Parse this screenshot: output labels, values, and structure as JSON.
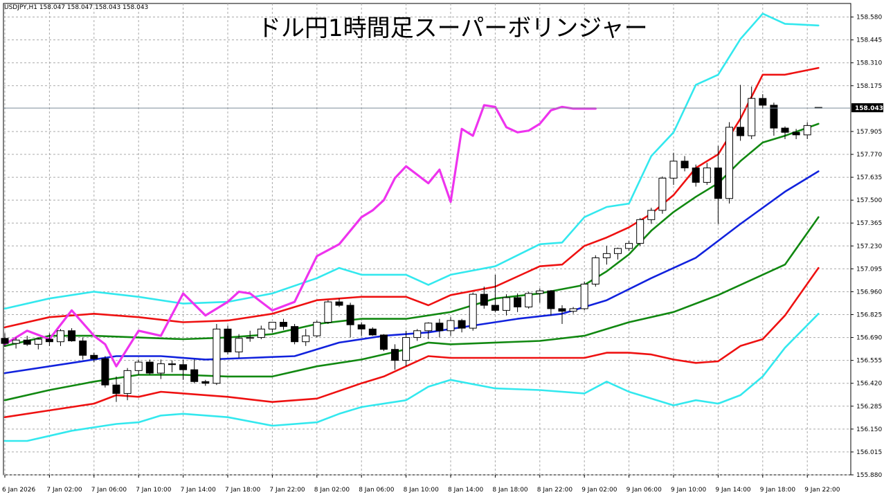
{
  "header": {
    "symbol_info": "USDJPY,H1  158.047 158.047 158.043 158.043",
    "title": "ドル円1時間足スーパーボリンジャー"
  },
  "colors": {
    "background": "#ffffff",
    "grid": "#a8a8a8",
    "sigma3": "#33e8ee",
    "sigma2": "#ee1111",
    "sigma1": "#118811",
    "middle": "#1122dd",
    "lagging": "#ee33ee",
    "candle_outline": "#000000",
    "bull_fill": "#ffffff",
    "bear_fill": "#000000",
    "current_price_line": "#7a8a99",
    "price_tag_bg": "#000000"
  },
  "chart_data": {
    "type": "candlestick",
    "title": "ドル円1時間足スーパーボリンジャー",
    "symbol": "USDJPY,H1",
    "current_price": "158.043",
    "ylim": [
      155.88,
      158.66
    ],
    "y_ticks": [
      "158.580",
      "158.445",
      "158.310",
      "158.175",
      "157.905",
      "157.770",
      "157.635",
      "157.500",
      "157.365",
      "157.230",
      "157.095",
      "156.960",
      "156.825",
      "156.690",
      "156.555",
      "156.420",
      "156.285",
      "156.150",
      "156.015",
      "155.880"
    ],
    "x_ticks": [
      "6 Jan 2026",
      "7 Jan 02:00",
      "7 Jan 06:00",
      "7 Jan 10:00",
      "7 Jan 14:00",
      "7 Jan 18:00",
      "7 Jan 22:00",
      "8 Jan 02:00",
      "8 Jan 06:00",
      "8 Jan 10:00",
      "8 Jan 14:00",
      "8 Jan 18:00",
      "8 Jan 22:00",
      "9 Jan 02:00",
      "9 Jan 06:00",
      "9 Jan 10:00",
      "9 Jan 14:00",
      "9 Jan 18:00",
      "9 Jan 22:00"
    ],
    "x_tick_index": [
      0,
      4,
      8,
      12,
      16,
      20,
      24,
      28,
      32,
      36,
      40,
      44,
      48,
      52,
      56,
      60,
      64,
      68,
      72
    ],
    "bar_count": 74,
    "candles": [
      [
        156.685,
        156.715,
        156.635,
        156.655
      ],
      [
        156.655,
        156.69,
        156.625,
        156.675
      ],
      [
        156.675,
        156.7,
        156.64,
        156.65
      ],
      [
        156.65,
        156.69,
        156.62,
        156.68
      ],
      [
        156.68,
        156.715,
        156.64,
        156.665
      ],
      [
        156.665,
        156.74,
        156.64,
        156.73
      ],
      [
        156.73,
        156.745,
        156.665,
        156.67
      ],
      [
        156.67,
        156.69,
        156.56,
        156.585
      ],
      [
        156.585,
        156.6,
        156.545,
        156.565
      ],
      [
        156.565,
        156.58,
        156.395,
        156.41
      ],
      [
        156.41,
        156.46,
        156.31,
        156.36
      ],
      [
        156.36,
        156.51,
        156.32,
        156.495
      ],
      [
        156.495,
        156.56,
        156.47,
        156.545
      ],
      [
        156.545,
        156.56,
        156.47,
        156.48
      ],
      [
        156.48,
        156.56,
        156.445,
        156.535
      ],
      [
        156.535,
        156.555,
        156.485,
        156.53
      ],
      [
        156.53,
        156.56,
        156.44,
        156.5
      ],
      [
        156.5,
        156.56,
        156.42,
        156.43
      ],
      [
        156.43,
        156.44,
        156.405,
        156.42
      ],
      [
        156.42,
        156.77,
        156.41,
        156.74
      ],
      [
        156.74,
        156.76,
        156.59,
        156.605
      ],
      [
        156.605,
        156.71,
        156.57,
        156.685
      ],
      [
        156.685,
        156.73,
        156.665,
        156.69
      ],
      [
        156.69,
        156.76,
        156.68,
        156.74
      ],
      [
        156.74,
        156.78,
        156.72,
        156.78
      ],
      [
        156.78,
        156.8,
        156.735,
        156.755
      ],
      [
        156.755,
        156.77,
        156.65,
        156.665
      ],
      [
        156.665,
        156.74,
        156.64,
        156.7
      ],
      [
        156.7,
        156.79,
        156.69,
        156.78
      ],
      [
        156.78,
        156.91,
        156.77,
        156.9
      ],
      [
        156.9,
        156.92,
        156.87,
        156.88
      ],
      [
        156.88,
        156.895,
        156.69,
        156.765
      ],
      [
        156.765,
        156.78,
        156.7,
        156.74
      ],
      [
        156.74,
        156.75,
        156.7,
        156.705
      ],
      [
        156.705,
        156.71,
        156.61,
        156.62
      ],
      [
        156.62,
        156.65,
        156.5,
        156.555
      ],
      [
        156.555,
        156.73,
        156.52,
        156.69
      ],
      [
        156.69,
        156.74,
        156.67,
        156.73
      ],
      [
        156.73,
        156.78,
        156.68,
        156.775
      ],
      [
        156.775,
        156.8,
        156.69,
        156.73
      ],
      [
        156.73,
        156.81,
        156.7,
        156.79
      ],
      [
        156.79,
        156.8,
        156.72,
        156.745
      ],
      [
        156.745,
        156.955,
        156.73,
        156.945
      ],
      [
        156.945,
        156.99,
        156.86,
        156.88
      ],
      [
        156.88,
        157.06,
        156.84,
        156.85
      ],
      [
        156.85,
        156.945,
        156.82,
        156.925
      ],
      [
        156.925,
        156.95,
        156.84,
        156.87
      ],
      [
        156.87,
        156.96,
        156.86,
        156.95
      ],
      [
        156.95,
        156.98,
        156.895,
        156.965
      ],
      [
        156.965,
        156.97,
        156.82,
        156.86
      ],
      [
        156.86,
        156.88,
        156.77,
        156.845
      ],
      [
        156.845,
        156.87,
        156.83,
        156.86
      ],
      [
        156.86,
        157.02,
        156.85,
        157.005
      ],
      [
        157.005,
        157.175,
        156.99,
        157.16
      ],
      [
        157.16,
        157.23,
        157.12,
        157.185
      ],
      [
        157.185,
        157.22,
        157.15,
        157.215
      ],
      [
        157.215,
        157.26,
        157.2,
        157.245
      ],
      [
        157.245,
        157.395,
        157.23,
        157.385
      ],
      [
        157.385,
        157.455,
        157.36,
        157.44
      ],
      [
        157.44,
        157.64,
        157.42,
        157.63
      ],
      [
        157.63,
        157.78,
        157.59,
        157.73
      ],
      [
        157.73,
        157.76,
        157.67,
        157.69
      ],
      [
        157.69,
        157.71,
        157.58,
        157.605
      ],
      [
        157.605,
        157.72,
        157.59,
        157.69
      ],
      [
        157.69,
        157.82,
        157.36,
        157.51
      ],
      [
        157.51,
        157.96,
        157.48,
        157.93
      ],
      [
        157.93,
        158.18,
        157.85,
        157.88
      ],
      [
        157.88,
        158.17,
        157.86,
        158.1
      ],
      [
        158.1,
        158.125,
        158.04,
        158.06
      ],
      [
        158.06,
        158.075,
        157.88,
        157.925
      ],
      [
        157.925,
        157.935,
        157.86,
        157.9
      ],
      [
        157.9,
        157.92,
        157.86,
        157.885
      ],
      [
        157.885,
        157.96,
        157.86,
        157.94
      ],
      [
        158.047,
        158.047,
        158.043,
        158.043
      ]
    ],
    "middle_band": {
      "x": [
        0,
        6,
        10,
        14,
        18,
        22,
        26,
        30,
        34,
        38,
        42,
        46,
        50,
        54,
        58,
        62,
        66,
        70,
        73
      ],
      "y": [
        156.48,
        156.54,
        156.58,
        156.58,
        156.56,
        156.57,
        156.58,
        156.66,
        156.7,
        156.72,
        156.76,
        156.8,
        156.83,
        156.91,
        157.04,
        157.16,
        157.36,
        157.55,
        157.67
      ]
    },
    "plus_sigma1": {
      "x": [
        0,
        4,
        8,
        12,
        16,
        20,
        24,
        28,
        32,
        36,
        40,
        44,
        48,
        52,
        54,
        56,
        58,
        60,
        62,
        64,
        66,
        68,
        70,
        73
      ],
      "y": [
        156.64,
        156.7,
        156.7,
        156.69,
        156.68,
        156.69,
        156.71,
        156.77,
        156.8,
        156.8,
        156.84,
        156.92,
        156.95,
        157.0,
        157.08,
        157.18,
        157.32,
        157.43,
        157.52,
        157.6,
        157.73,
        157.84,
        157.88,
        157.95
      ]
    },
    "plus_sigma2": {
      "x": [
        0,
        4,
        8,
        12,
        16,
        20,
        24,
        28,
        32,
        36,
        38,
        40,
        44,
        48,
        50,
        52,
        54,
        56,
        58,
        60,
        62,
        64,
        66,
        68,
        70,
        73
      ],
      "y": [
        156.75,
        156.81,
        156.83,
        156.81,
        156.78,
        156.79,
        156.83,
        156.91,
        156.93,
        156.93,
        156.88,
        156.94,
        156.99,
        157.11,
        157.12,
        157.23,
        157.28,
        157.34,
        157.42,
        157.53,
        157.69,
        157.77,
        157.98,
        158.24,
        158.24,
        158.28
      ]
    },
    "plus_sigma3": {
      "x": [
        0,
        4,
        8,
        12,
        16,
        20,
        24,
        28,
        30,
        32,
        36,
        38,
        40,
        44,
        48,
        50,
        52,
        54,
        56,
        58,
        60,
        62,
        64,
        66,
        68,
        70,
        73
      ],
      "y": [
        156.86,
        156.92,
        156.96,
        156.93,
        156.89,
        156.9,
        156.95,
        157.04,
        157.1,
        157.06,
        157.06,
        157.0,
        157.06,
        157.11,
        157.24,
        157.25,
        157.4,
        157.46,
        157.48,
        157.76,
        157.9,
        158.18,
        158.24,
        158.45,
        158.6,
        158.54,
        158.53
      ]
    },
    "minus_sigma1": {
      "x": [
        0,
        4,
        8,
        12,
        16,
        20,
        24,
        28,
        32,
        36,
        38,
        40,
        44,
        48,
        52,
        56,
        60,
        64,
        68,
        70,
        73
      ],
      "y": [
        156.32,
        156.38,
        156.43,
        156.47,
        156.47,
        156.46,
        156.46,
        156.52,
        156.56,
        156.62,
        156.66,
        156.65,
        156.66,
        156.67,
        156.7,
        156.78,
        156.84,
        156.94,
        157.06,
        157.12,
        157.4
      ]
    },
    "minus_sigma2": {
      "x": [
        0,
        4,
        8,
        10,
        12,
        14,
        16,
        20,
        24,
        28,
        32,
        34,
        36,
        38,
        40,
        44,
        48,
        52,
        54,
        56,
        58,
        60,
        62,
        64,
        66,
        68,
        70,
        73
      ],
      "y": [
        156.22,
        156.26,
        156.3,
        156.35,
        156.34,
        156.37,
        156.36,
        156.34,
        156.31,
        156.33,
        156.42,
        156.46,
        156.52,
        156.58,
        156.57,
        156.57,
        156.57,
        156.57,
        156.6,
        156.6,
        156.59,
        156.56,
        156.54,
        156.55,
        156.64,
        156.68,
        156.82,
        157.1
      ]
    },
    "minus_sigma3": {
      "x": [
        0,
        2,
        4,
        6,
        8,
        10,
        12,
        14,
        16,
        20,
        24,
        28,
        30,
        32,
        36,
        38,
        40,
        44,
        48,
        52,
        54,
        56,
        58,
        60,
        62,
        64,
        66,
        68,
        70,
        73
      ],
      "y": [
        156.08,
        156.08,
        156.11,
        156.14,
        156.16,
        156.18,
        156.19,
        156.23,
        156.24,
        156.22,
        156.17,
        156.19,
        156.24,
        156.28,
        156.32,
        156.4,
        156.44,
        156.39,
        156.38,
        156.36,
        156.43,
        156.37,
        156.33,
        156.29,
        156.32,
        156.3,
        156.35,
        156.46,
        156.63,
        156.83
      ]
    },
    "lagging_span": {
      "x": [
        0,
        2,
        4,
        6,
        8,
        9,
        10,
        12,
        14,
        16,
        18,
        20,
        21,
        22,
        24,
        26,
        28,
        30,
        32,
        33,
        34,
        35,
        36,
        37,
        38,
        39,
        40,
        41,
        42,
        43,
        44,
        45,
        46,
        47,
        48,
        49,
        50,
        51,
        52,
        53
      ],
      "y": [
        156.65,
        156.73,
        156.68,
        156.85,
        156.7,
        156.65,
        156.52,
        156.73,
        156.7,
        156.95,
        156.82,
        156.9,
        156.96,
        156.95,
        156.85,
        156.9,
        157.17,
        157.24,
        157.4,
        157.44,
        157.5,
        157.63,
        157.7,
        157.65,
        157.6,
        157.68,
        157.49,
        157.92,
        157.88,
        158.06,
        158.05,
        157.93,
        157.9,
        157.91,
        157.95,
        158.03,
        158.05,
        158.04,
        158.04,
        158.04
      ]
    }
  }
}
